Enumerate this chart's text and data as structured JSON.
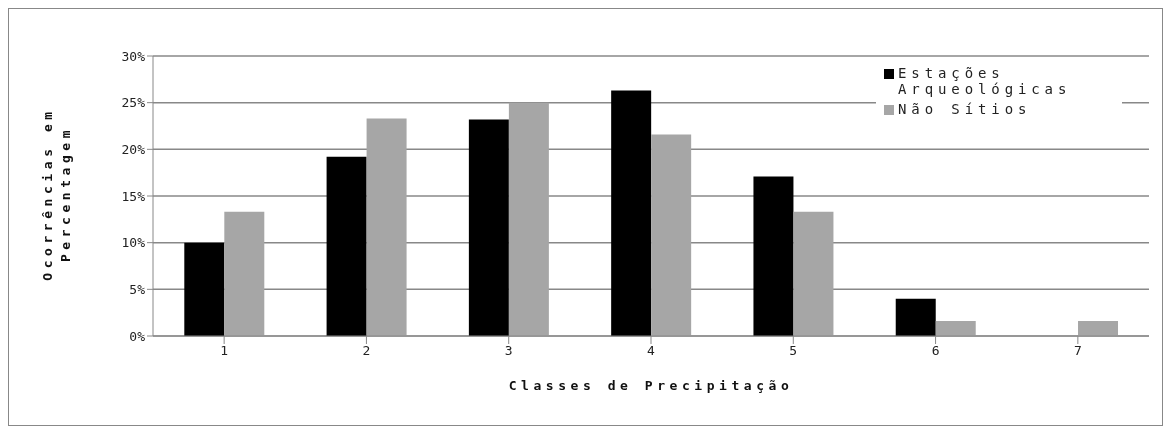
{
  "chart_data": {
    "type": "bar",
    "xlabel": "Classes de Precipitação",
    "ylabel": "Ocorrências em Percentagem",
    "categories": [
      "1",
      "2",
      "3",
      "4",
      "5",
      "6",
      "7"
    ],
    "series": [
      {
        "name": "Estações Arqueológicas",
        "color": "#000000",
        "values": [
          10.0,
          19.2,
          23.2,
          26.3,
          17.1,
          4.0,
          0
        ]
      },
      {
        "name": "Não Sítios",
        "color": "#a6a6a6",
        "values": [
          13.3,
          23.3,
          25.0,
          21.6,
          13.3,
          1.6,
          1.6
        ]
      }
    ],
    "ylim": [
      0,
      30
    ],
    "yticks": [
      {
        "value": 0,
        "label": "0%"
      },
      {
        "value": 5,
        "label": "5%"
      },
      {
        "value": 10,
        "label": "10%"
      },
      {
        "value": 15,
        "label": "15%"
      },
      {
        "value": 20,
        "label": "20%"
      },
      {
        "value": 25,
        "label": "25%"
      },
      {
        "value": 30,
        "label": "30%"
      }
    ],
    "grid": "y",
    "legend": "top right"
  }
}
